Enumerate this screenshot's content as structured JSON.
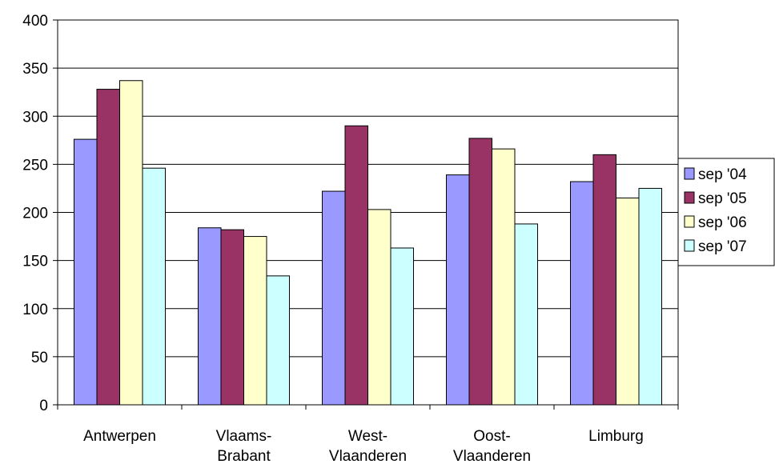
{
  "chart_data": {
    "type": "bar",
    "categories": [
      [
        "Antwerpen"
      ],
      [
        "Vlaams-",
        "Brabant"
      ],
      [
        "West-",
        "Vlaanderen"
      ],
      [
        "Oost-",
        "Vlaanderen"
      ],
      [
        "Limburg"
      ]
    ],
    "series": [
      {
        "name": "sep '04",
        "color": "#9999FF",
        "values": [
          276,
          184,
          222,
          239,
          232
        ]
      },
      {
        "name": "sep '05",
        "color": "#993366",
        "values": [
          328,
          182,
          290,
          277,
          260
        ]
      },
      {
        "name": "sep '06",
        "color": "#FFFFCC",
        "values": [
          337,
          175,
          203,
          266,
          215
        ]
      },
      {
        "name": "sep '07",
        "color": "#CCFFFF",
        "values": [
          246,
          134,
          163,
          188,
          225
        ]
      }
    ],
    "yticks": [
      "0",
      "50",
      "100",
      "150",
      "200",
      "250",
      "300",
      "350",
      "400"
    ],
    "ylim": [
      0,
      400
    ],
    "grid": true,
    "legend_position": "right"
  }
}
